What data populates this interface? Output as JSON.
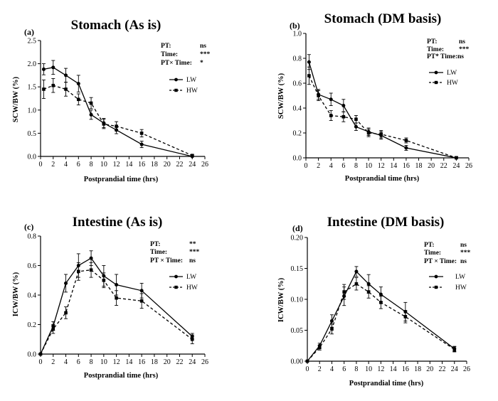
{
  "chart_data": [
    {
      "type": "line",
      "panel_label": "(a)",
      "title": "Stomach (As is)",
      "xlabel": "Postprandial time (hrs)",
      "ylabel": "SCW/BW (%)",
      "xlim": [
        0,
        26
      ],
      "ylim": [
        0,
        2.5
      ],
      "xticks": [
        0,
        2,
        4,
        6,
        8,
        10,
        12,
        14,
        16,
        18,
        20,
        22,
        24,
        26
      ],
      "yticks": [
        "0.0",
        "0.5",
        "1.0",
        "1.5",
        "2.0",
        "2.5"
      ],
      "stats": [
        {
          "label": "PT:",
          "value": "ns"
        },
        {
          "label": "Time:",
          "value": "***"
        },
        {
          "label": "PT× Time:",
          "value": "*"
        }
      ],
      "legend_position": "right",
      "series": [
        {
          "name": "LW",
          "style": "solid",
          "marker": "circle",
          "x": [
            0.5,
            2,
            4,
            6,
            8,
            10,
            12,
            16,
            24
          ],
          "y": [
            1.88,
            1.92,
            1.75,
            1.57,
            0.9,
            0.72,
            0.57,
            0.26,
            0.0
          ],
          "err": [
            0.12,
            0.15,
            0.15,
            0.18,
            0.1,
            0.1,
            0.08,
            0.07,
            0.02
          ]
        },
        {
          "name": "HW",
          "style": "dashed",
          "marker": "square",
          "x": [
            0.5,
            2,
            4,
            6,
            8,
            10,
            12,
            16,
            24
          ],
          "y": [
            1.45,
            1.53,
            1.45,
            1.23,
            1.15,
            0.7,
            0.65,
            0.5,
            0.02
          ],
          "err": [
            0.2,
            0.15,
            0.15,
            0.12,
            0.12,
            0.1,
            0.1,
            0.08,
            0.02
          ]
        }
      ]
    },
    {
      "type": "line",
      "panel_label": "(b)",
      "title": "Stomach (DM basis)",
      "xlabel": "Postprandial time (hrs)",
      "ylabel": "SCW/BW (%)",
      "xlim": [
        0,
        26
      ],
      "ylim": [
        0,
        1.0
      ],
      "xticks": [
        0,
        2,
        4,
        6,
        8,
        10,
        12,
        14,
        16,
        18,
        20,
        22,
        24,
        26
      ],
      "yticks": [
        "0.0",
        "0.2",
        "0.4",
        "0.6",
        "0.8",
        "1.0"
      ],
      "stats": [
        {
          "label": "PT:",
          "value": "ns"
        },
        {
          "label": "Time:",
          "value": "***"
        },
        {
          "label": "PT* Time:",
          "value": "ns"
        }
      ],
      "legend_position": "right",
      "series": [
        {
          "name": "LW",
          "style": "solid",
          "marker": "circle",
          "x": [
            0.5,
            2,
            4,
            6,
            8,
            10,
            12,
            16,
            24
          ],
          "y": [
            0.77,
            0.51,
            0.47,
            0.42,
            0.25,
            0.21,
            0.18,
            0.08,
            0.0
          ],
          "err": [
            0.06,
            0.04,
            0.05,
            0.05,
            0.03,
            0.03,
            0.03,
            0.02,
            0.01
          ]
        },
        {
          "name": "HW",
          "style": "dashed",
          "marker": "square",
          "x": [
            0.5,
            2,
            4,
            6,
            8,
            10,
            12,
            16,
            24
          ],
          "y": [
            0.66,
            0.5,
            0.34,
            0.33,
            0.31,
            0.2,
            0.19,
            0.14,
            0.0
          ],
          "err": [
            0.07,
            0.04,
            0.04,
            0.04,
            0.03,
            0.03,
            0.03,
            0.02,
            0.01
          ]
        }
      ]
    },
    {
      "type": "line",
      "panel_label": "(c)",
      "title": "Intestine (As is)",
      "xlabel": "Postprandial time (hrs)",
      "ylabel": "ICW/BW (%)",
      "xlim": [
        0,
        26
      ],
      "ylim": [
        0,
        0.8
      ],
      "xticks": [
        0,
        2,
        4,
        6,
        8,
        10,
        12,
        14,
        16,
        18,
        20,
        22,
        24,
        26
      ],
      "yticks": [
        "0.0",
        "0.2",
        "0.4",
        "0.6",
        "0.8"
      ],
      "stats": [
        {
          "label": "PT:",
          "value": "**"
        },
        {
          "label": "Time:",
          "value": "***"
        },
        {
          "label": "PT × Time:",
          "value": "ns"
        }
      ],
      "legend_position": "right",
      "series": [
        {
          "name": "LW",
          "style": "solid",
          "marker": "circle",
          "x": [
            0,
            2,
            4,
            6,
            8,
            10,
            12,
            16,
            24
          ],
          "y": [
            0.0,
            0.19,
            0.48,
            0.6,
            0.65,
            0.53,
            0.47,
            0.43,
            0.12
          ],
          "err": [
            0.0,
            0.03,
            0.06,
            0.08,
            0.05,
            0.07,
            0.07,
            0.05,
            0.02
          ]
        },
        {
          "name": "HW",
          "style": "dashed",
          "marker": "square",
          "x": [
            0,
            2,
            4,
            6,
            8,
            10,
            12,
            16,
            24
          ],
          "y": [
            0.0,
            0.17,
            0.28,
            0.56,
            0.57,
            0.5,
            0.38,
            0.36,
            0.1
          ],
          "err": [
            0.0,
            0.03,
            0.04,
            0.06,
            0.05,
            0.05,
            0.05,
            0.05,
            0.03
          ]
        }
      ]
    },
    {
      "type": "line",
      "panel_label": "(d)",
      "title": "Intestine (DM basis)",
      "xlabel": "Postprandial time (hrs)",
      "ylabel": "ICW/BW (%)",
      "xlim": [
        0,
        26
      ],
      "ylim": [
        0,
        0.2
      ],
      "xticks": [
        0,
        2,
        4,
        6,
        8,
        10,
        12,
        14,
        16,
        18,
        20,
        22,
        24,
        26
      ],
      "yticks": [
        "0.00",
        "0.05",
        "0.10",
        "0.15",
        "0.20"
      ],
      "stats": [
        {
          "label": "PT:",
          "value": "ns"
        },
        {
          "label": "Time:",
          "value": "***"
        },
        {
          "label": "PT × Time:",
          "value": "ns"
        }
      ],
      "legend_position": "right",
      "series": [
        {
          "name": "LW",
          "style": "solid",
          "marker": "circle",
          "x": [
            0,
            2,
            4,
            6,
            8,
            10,
            12,
            16,
            24
          ],
          "y": [
            0.0,
            0.025,
            0.065,
            0.105,
            0.145,
            0.125,
            0.108,
            0.08,
            0.02
          ],
          "err": [
            0.0,
            0.004,
            0.01,
            0.015,
            0.008,
            0.015,
            0.012,
            0.015,
            0.004
          ]
        },
        {
          "name": "HW",
          "style": "dashed",
          "marker": "square",
          "x": [
            0,
            2,
            4,
            6,
            8,
            10,
            12,
            16,
            24
          ],
          "y": [
            0.0,
            0.022,
            0.052,
            0.112,
            0.125,
            0.112,
            0.095,
            0.072,
            0.019
          ],
          "err": [
            0.0,
            0.004,
            0.008,
            0.012,
            0.01,
            0.01,
            0.01,
            0.01,
            0.004
          ]
        }
      ]
    }
  ]
}
